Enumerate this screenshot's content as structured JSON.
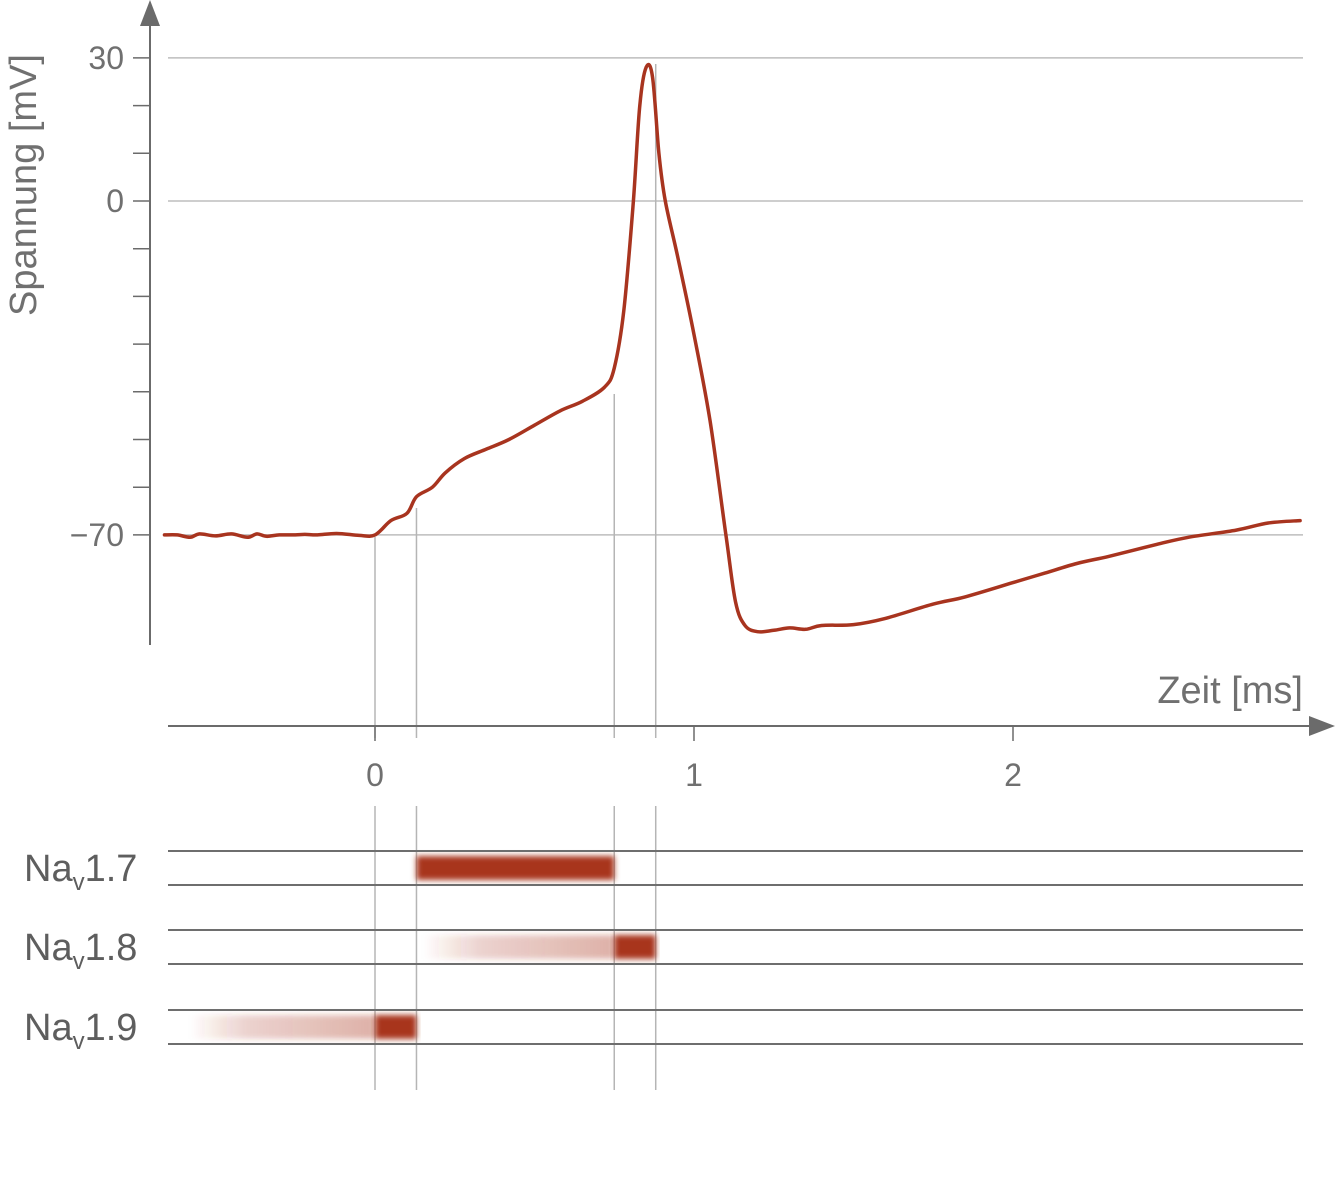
{
  "chart_data": {
    "type": "line",
    "xlabel": "Zeit [ms]",
    "ylabel": "Spannung [mV]",
    "xlim": [
      -0.65,
      2.9
    ],
    "ylim": [
      -95,
      41
    ],
    "x_ticks": [
      {
        "value": 0,
        "label": "0"
      },
      {
        "value": 1,
        "label": "1"
      },
      {
        "value": 2,
        "label": "2"
      }
    ],
    "y_ticks": [
      {
        "value": 30,
        "label": "30"
      },
      {
        "value": 0,
        "label": "0"
      },
      {
        "value": -70,
        "label": "−70"
      }
    ],
    "y_minor_ticks": [
      20,
      10,
      -10,
      -20,
      -30,
      -40,
      -50,
      -60
    ],
    "grid": "horizontal at labeled ticks",
    "colors": {
      "trace": "#a8341f",
      "channel": "#a8341f",
      "grid": "#b8b8b8",
      "axis": "#6b6b6b"
    },
    "guide_lines_ms": [
      0,
      0.13,
      0.75,
      0.88
    ],
    "series": [
      {
        "x": [
          -0.66,
          -0.62,
          -0.58,
          -0.55,
          -0.5,
          -0.45,
          -0.4,
          -0.37,
          -0.34,
          -0.3,
          -0.25,
          -0.22,
          -0.18,
          -0.12,
          -0.05,
          0,
          0.05,
          0.1,
          0.13,
          0.18,
          0.22,
          0.28,
          0.35,
          0.42,
          0.5,
          0.58,
          0.65,
          0.72,
          0.75,
          0.78,
          0.81,
          0.83,
          0.85,
          0.87,
          0.89,
          0.91,
          0.95,
          1.0,
          1.05,
          1.1,
          1.13,
          1.16,
          1.2,
          1.25,
          1.3,
          1.35,
          1.4,
          1.5,
          1.6,
          1.75,
          1.85,
          2.0,
          2.1,
          2.2,
          2.3,
          2.45,
          2.55,
          2.7,
          2.8,
          2.9
        ],
        "values": [
          -70,
          -70,
          -70.5,
          -69.8,
          -70.2,
          -69.8,
          -70.5,
          -69.8,
          -70.3,
          -70,
          -70,
          -69.9,
          -70,
          -69.7,
          -70.1,
          -70,
          -67,
          -65.5,
          -62,
          -60,
          -57,
          -54,
          -52,
          -50,
          -47,
          -44,
          -42,
          -39,
          -35,
          -23,
          0,
          20,
          28,
          26,
          10,
          0,
          -12,
          -28,
          -46,
          -70,
          -84,
          -89,
          -90.3,
          -90,
          -89.5,
          -89.8,
          -89,
          -88.8,
          -87.5,
          -84.5,
          -83,
          -80,
          -78,
          -76,
          -74.5,
          -72,
          -70.5,
          -69,
          -67.5,
          -67
        ]
      }
    ],
    "channels": [
      {
        "label_main": "Na",
        "label_sub": "v",
        "label_rest": "1.7",
        "segments": [
          {
            "start_ms": 0.13,
            "end_ms": 0.75,
            "strength": "strong"
          }
        ]
      },
      {
        "label_main": "Na",
        "label_sub": "v",
        "label_rest": "1.8",
        "segments": [
          {
            "start_ms": 0.15,
            "end_ms": 0.75,
            "strength": "weak-fade-in"
          },
          {
            "start_ms": 0.75,
            "end_ms": 0.88,
            "strength": "strong"
          }
        ]
      },
      {
        "label_main": "Na",
        "label_sub": "v",
        "label_rest": "1.9",
        "segments": [
          {
            "start_ms": -0.58,
            "end_ms": 0.0,
            "strength": "weak-fade-in"
          },
          {
            "start_ms": 0.0,
            "end_ms": 0.13,
            "strength": "strong"
          }
        ]
      }
    ]
  }
}
